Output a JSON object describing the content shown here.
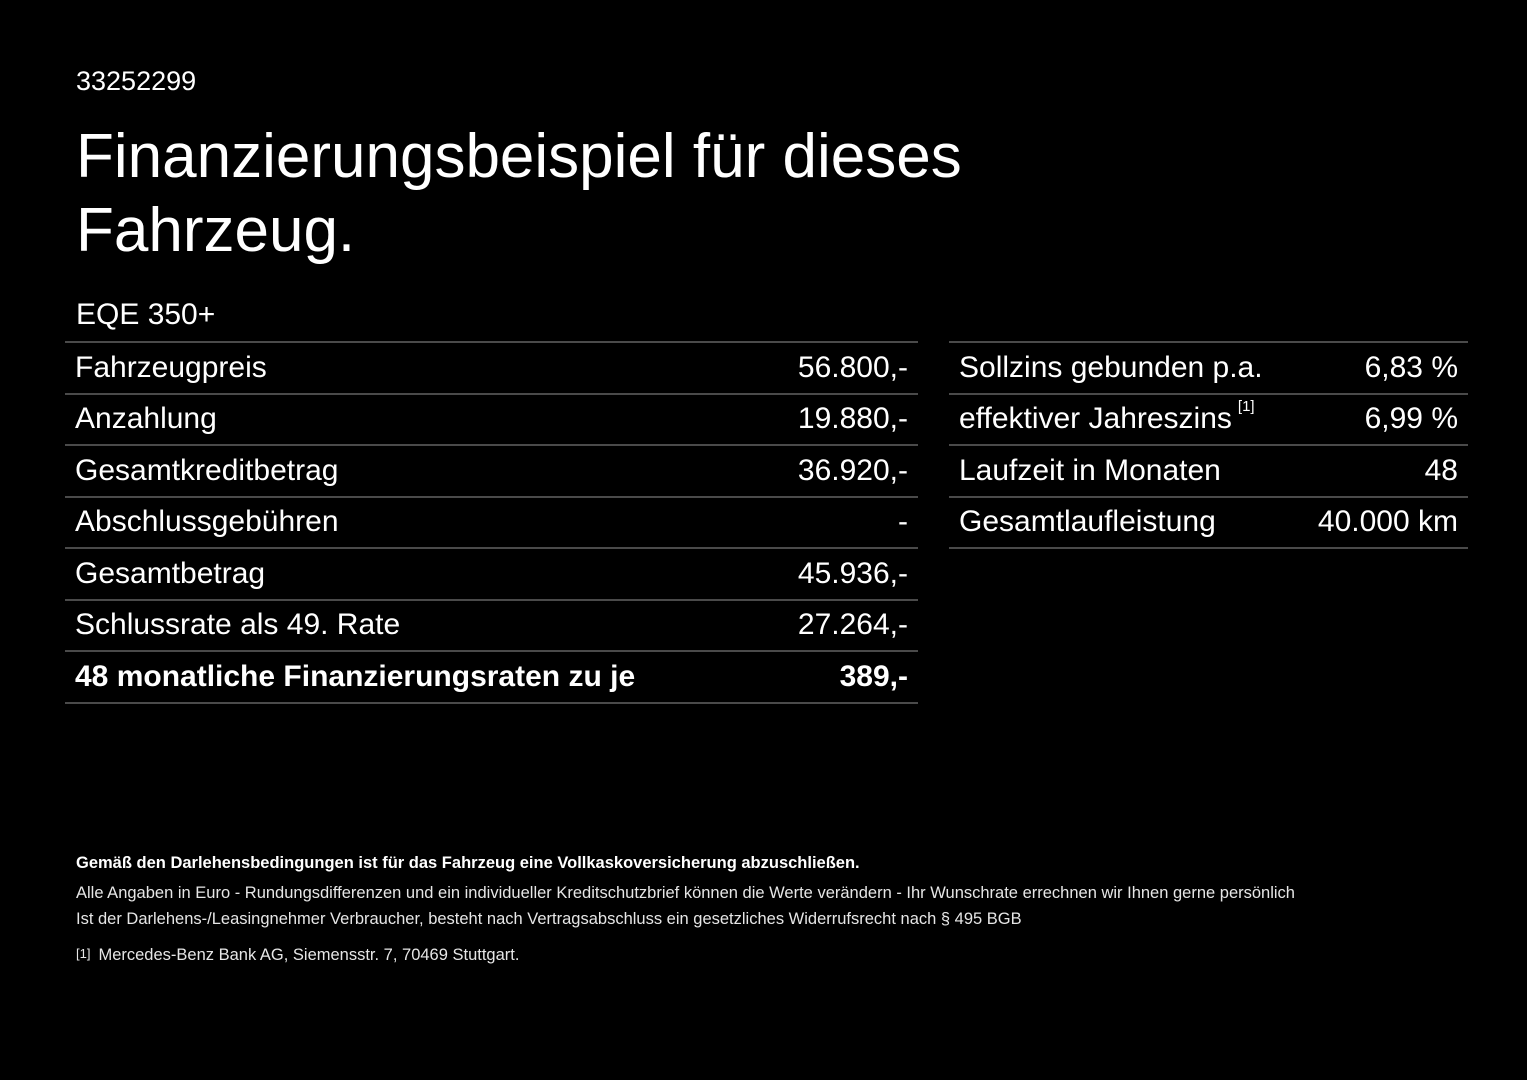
{
  "header": {
    "id": "33252299",
    "title": "Finanzierungsbeispiel für dieses Fahrzeug."
  },
  "model": "EQE 350+",
  "left_table": [
    {
      "label": "Fahrzeugpreis",
      "value": "56.800,-"
    },
    {
      "label": "Anzahlung",
      "value": "19.880,-"
    },
    {
      "label": "Gesamtkreditbetrag",
      "value": "36.920,-"
    },
    {
      "label": "Abschlussgebühren",
      "value": "-"
    },
    {
      "label": "Gesamtbetrag",
      "value": "45.936,-"
    },
    {
      "label": "Schlussrate als 49. Rate",
      "value": "27.264,-"
    },
    {
      "label": "48 monatliche Finanzierungsraten zu je",
      "value": "389,-"
    }
  ],
  "right_table": [
    {
      "label": "Sollzins gebunden p.a.",
      "value": "6,83 %"
    },
    {
      "label": "effektiver Jahreszins",
      "note": "[1]",
      "value": "6,99 %"
    },
    {
      "label": "Laufzeit in Monaten",
      "value": "48"
    },
    {
      "label": "Gesamtlaufleistung",
      "value": "40.000 km"
    }
  ],
  "footer": {
    "insurance_note": "Gemäß den Darlehensbedingungen ist für das Fahrzeug eine Vollkaskoversicherung abzuschließen.",
    "euro_note": "Alle Angaben in Euro - Rundungsdifferenzen und ein individueller Kreditschutzbrief können die Werte verändern - Ihr Wunschrate errechnen wir Ihnen gerne persönlich",
    "withdrawal_note": "Ist der Darlehens-/Leasingnehmer Verbraucher, besteht nach Vertragsabschluss ein gesetzliches Widerrufsrecht nach § 495 BGB",
    "footnote_marker": "[1]",
    "footnote_text": "Mercedes-Benz Bank AG, Siemensstr. 7, 70469 Stuttgart."
  }
}
